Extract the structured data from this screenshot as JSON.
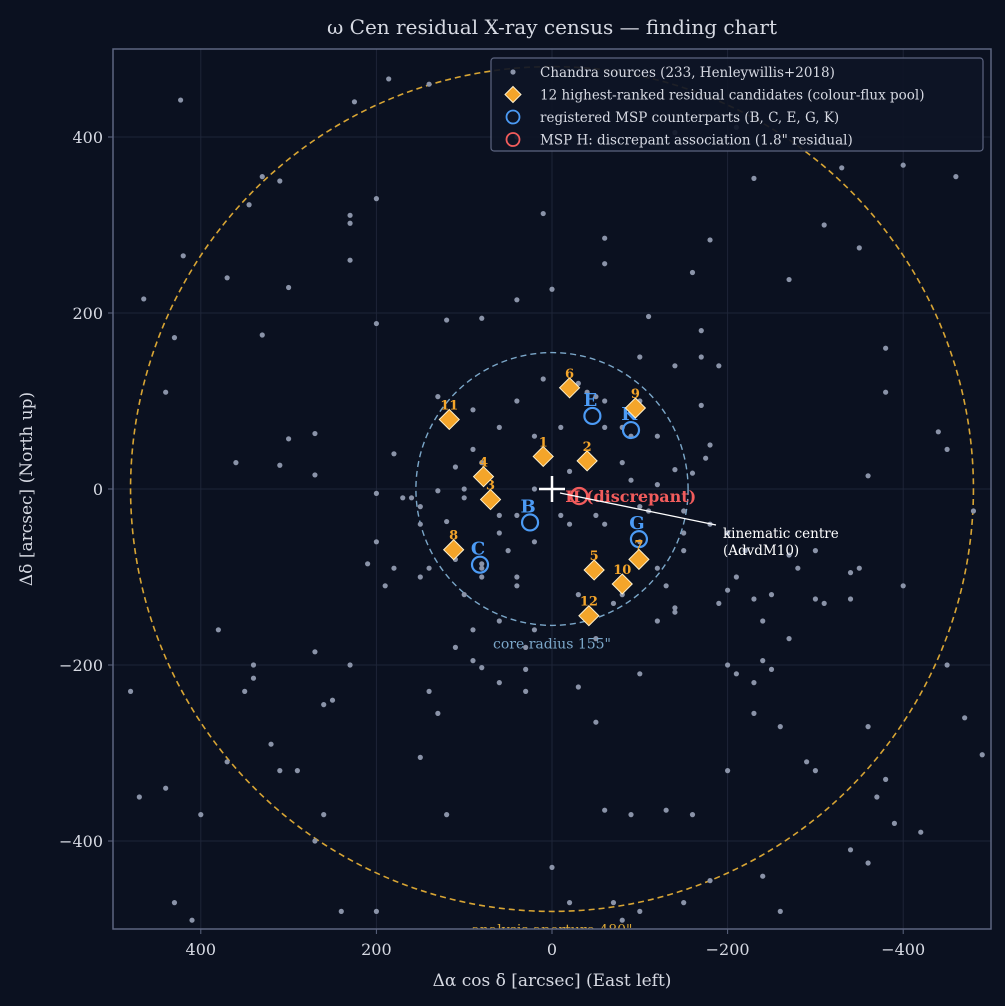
{
  "colors": {
    "background": "#0b1120",
    "axes_frame": "#5d6580",
    "grid": "#1e2538",
    "text": "#d6d9e2",
    "chandra": "#8a93a8",
    "candidate": "#f4a52a",
    "candidate_edge": "#fff1cc",
    "msp": "#4c9bf5",
    "msp_h": "#f25c5c",
    "core": "#7ba7c9",
    "aperture": "#d8a534",
    "centre": "#ffffff"
  },
  "chart_data": {
    "type": "scatter",
    "title": "ω Cen residual X-ray census — finding chart",
    "xlabel": "Δα cos δ [arcsec]  (East left)",
    "ylabel": "Δδ [arcsec]  (North up)",
    "xlim": [
      500,
      -500
    ],
    "ylim": [
      -500,
      500
    ],
    "xticks": [
      400,
      200,
      0,
      -200,
      -400
    ],
    "yticks": [
      400,
      200,
      0,
      -200,
      -400
    ],
    "xtick_labels": [
      "400",
      "200",
      "0",
      "−200",
      "−400"
    ],
    "ytick_labels": [
      "400",
      "200",
      "0",
      "−200",
      "−400"
    ],
    "grid": true,
    "legend_position": "top-right",
    "legend": [
      {
        "label": "Chandra sources (233, Henleywillis+2018)",
        "marker": "dot"
      },
      {
        "label": "12 highest-ranked residual candidates (colour-flux pool)",
        "marker": "diamond"
      },
      {
        "label": "registered MSP counterparts (B, C, E, G, K)",
        "marker": "circle-blue"
      },
      {
        "label": "MSP H: discrepant association (1.8\" residual)",
        "marker": "circle-red"
      }
    ],
    "core_radius": 155,
    "core_label": "core radius 155\"",
    "aperture_radius": 480,
    "aperture_label": "analysis aperture 480\"",
    "centre": {
      "x": 0,
      "y": 0
    },
    "centre_label_line1": "kinematic centre",
    "centre_label_line2": "(AdvdM10)",
    "chandra_points": [
      [
        423,
        442
      ],
      [
        225,
        440
      ],
      [
        186,
        466
      ],
      [
        140,
        460
      ],
      [
        40,
        400
      ],
      [
        -140,
        405
      ],
      [
        -210,
        411
      ],
      [
        -330,
        365
      ],
      [
        -400,
        368
      ],
      [
        -460,
        355
      ],
      [
        -230,
        353
      ],
      [
        -180,
        283
      ],
      [
        -160,
        246
      ],
      [
        -350,
        274
      ],
      [
        -310,
        300
      ],
      [
        -270,
        238
      ],
      [
        -60,
        256
      ],
      [
        -110,
        196
      ],
      [
        10,
        313
      ],
      [
        -60,
        285
      ],
      [
        0,
        227
      ],
      [
        40,
        215
      ],
      [
        80,
        194
      ],
      [
        120,
        192
      ],
      [
        230,
        260
      ],
      [
        300,
        229
      ],
      [
        310,
        350
      ],
      [
        330,
        355
      ],
      [
        345,
        323
      ],
      [
        370,
        240
      ],
      [
        420,
        265
      ],
      [
        430,
        172
      ],
      [
        440,
        110
      ],
      [
        465,
        216
      ],
      [
        330,
        175
      ],
      [
        200,
        188
      ],
      [
        200,
        330
      ],
      [
        230,
        302
      ],
      [
        230,
        311
      ],
      [
        360,
        30
      ],
      [
        310,
        27
      ],
      [
        300,
        57
      ],
      [
        270,
        63
      ],
      [
        270,
        16
      ],
      [
        180,
        40
      ],
      [
        160,
        -10
      ],
      [
        200,
        -5
      ],
      [
        130,
        -2
      ],
      [
        150,
        -40
      ],
      [
        120,
        -37
      ],
      [
        110,
        -70
      ],
      [
        110,
        -80
      ],
      [
        80,
        -85
      ],
      [
        90,
        -160
      ],
      [
        60,
        -150
      ],
      [
        110,
        -180
      ],
      [
        140,
        -230
      ],
      [
        130,
        -255
      ],
      [
        120,
        -370
      ],
      [
        90,
        -195
      ],
      [
        150,
        -305
      ],
      [
        80,
        -203
      ],
      [
        60,
        -220
      ],
      [
        30,
        -180
      ],
      [
        30,
        -205
      ],
      [
        20,
        -160
      ],
      [
        -30,
        -225
      ],
      [
        -50,
        -265
      ],
      [
        -60,
        -365
      ],
      [
        -90,
        -370
      ],
      [
        -130,
        -365
      ],
      [
        -160,
        -370
      ],
      [
        -200,
        -320
      ],
      [
        -210,
        -210
      ],
      [
        -230,
        -220
      ],
      [
        -240,
        -195
      ],
      [
        -250,
        -205
      ],
      [
        -260,
        -270
      ],
      [
        -230,
        -255
      ],
      [
        -240,
        -440
      ],
      [
        -290,
        -310
      ],
      [
        -300,
        -320
      ],
      [
        -340,
        -410
      ],
      [
        -360,
        -425
      ],
      [
        -380,
        -330
      ],
      [
        -390,
        -380
      ],
      [
        -370,
        -350
      ],
      [
        -400,
        -110
      ],
      [
        -420,
        -390
      ],
      [
        -470,
        -260
      ],
      [
        -490,
        -302
      ],
      [
        -550,
        -330
      ],
      [
        -480,
        -25
      ],
      [
        -450,
        -200
      ],
      [
        -440,
        65
      ],
      [
        -450,
        45
      ],
      [
        -380,
        160
      ],
      [
        -380,
        110
      ],
      [
        -360,
        15
      ],
      [
        -350,
        -90
      ],
      [
        -340,
        -95
      ],
      [
        -300,
        -125
      ],
      [
        -310,
        -130
      ],
      [
        -300,
        -70
      ],
      [
        -280,
        -90
      ],
      [
        -270,
        -75
      ],
      [
        -250,
        -120
      ],
      [
        -240,
        -150
      ],
      [
        -230,
        -125
      ],
      [
        -220,
        -70
      ],
      [
        -210,
        -100
      ],
      [
        -180,
        50
      ],
      [
        -175,
        35
      ],
      [
        -160,
        18
      ],
      [
        -150,
        -70
      ],
      [
        -140,
        -135
      ],
      [
        -140,
        -140
      ],
      [
        -130,
        -110
      ],
      [
        -150,
        -25
      ],
      [
        -140,
        22
      ],
      [
        -120,
        5
      ],
      [
        -110,
        -25
      ],
      [
        -100,
        -60
      ],
      [
        -90,
        60
      ],
      [
        -80,
        70
      ],
      [
        -60,
        100
      ],
      [
        -60,
        70
      ],
      [
        -50,
        105
      ],
      [
        -40,
        110
      ],
      [
        -30,
        120
      ],
      [
        -10,
        -30
      ],
      [
        -20,
        -40
      ],
      [
        -10,
        70
      ],
      [
        10,
        30
      ],
      [
        10,
        125
      ],
      [
        20,
        60
      ],
      [
        20,
        -60
      ],
      [
        40,
        -100
      ],
      [
        50,
        -70
      ],
      [
        60,
        -30
      ],
      [
        70,
        -15
      ],
      [
        80,
        -100
      ],
      [
        80,
        -90
      ],
      [
        100,
        -10
      ],
      [
        110,
        25
      ],
      [
        90,
        45
      ],
      [
        80,
        30
      ],
      [
        60,
        70
      ],
      [
        -100,
        100
      ],
      [
        -140,
        140
      ],
      [
        -170,
        150
      ],
      [
        -170,
        180
      ],
      [
        -190,
        140
      ],
      [
        -170,
        95
      ],
      [
        -200,
        -115
      ],
      [
        -190,
        -130
      ],
      [
        -200,
        -200
      ],
      [
        -270,
        -170
      ],
      [
        -340,
        -125
      ],
      [
        -360,
        -270
      ],
      [
        130,
        105
      ],
      [
        150,
        -20
      ],
      [
        170,
        -10
      ],
      [
        180,
        -90
      ],
      [
        190,
        -110
      ],
      [
        210,
        -85
      ],
      [
        200,
        -60
      ],
      [
        230,
        -200
      ],
      [
        250,
        -240
      ],
      [
        260,
        -245
      ],
      [
        270,
        -185
      ],
      [
        290,
        -320
      ],
      [
        310,
        -320
      ],
      [
        320,
        -290
      ],
      [
        340,
        -215
      ],
      [
        340,
        -200
      ],
      [
        350,
        -230
      ],
      [
        370,
        -310
      ],
      [
        400,
        -370
      ],
      [
        410,
        -490
      ],
      [
        430,
        -470
      ],
      [
        470,
        -350
      ],
      [
        480,
        -230
      ],
      [
        440,
        -340
      ],
      [
        380,
        -160
      ],
      [
        200,
        -480
      ],
      [
        260,
        -370
      ],
      [
        270,
        -400
      ],
      [
        240,
        -480
      ],
      [
        0,
        -430
      ],
      [
        -20,
        -470
      ],
      [
        -70,
        -470
      ],
      [
        -80,
        -490
      ],
      [
        -100,
        -480
      ],
      [
        -150,
        -470
      ],
      [
        -180,
        -445
      ],
      [
        -260,
        -480
      ],
      [
        150,
        -100
      ],
      [
        100,
        0
      ],
      [
        90,
        90
      ],
      [
        40,
        100
      ],
      [
        40,
        -30
      ],
      [
        60,
        -50
      ],
      [
        20,
        0
      ],
      [
        -20,
        20
      ],
      [
        -40,
        40
      ],
      [
        -50,
        -30
      ],
      [
        -60,
        -40
      ],
      [
        -90,
        10
      ],
      [
        -100,
        -20
      ],
      [
        -80,
        -120
      ],
      [
        -120,
        -90
      ],
      [
        -70,
        -130
      ],
      [
        -30,
        -120
      ],
      [
        -50,
        -170
      ],
      [
        30,
        -230
      ],
      [
        -100,
        -210
      ],
      [
        -120,
        -150
      ],
      [
        -80,
        30
      ],
      [
        -120,
        60
      ],
      [
        -100,
        150
      ],
      [
        -150,
        -50
      ],
      [
        -180,
        -40
      ],
      [
        -200,
        -50
      ],
      [
        40,
        -110
      ],
      [
        100,
        -120
      ],
      [
        140,
        -90
      ]
    ],
    "candidates": [
      {
        "label": "1",
        "x": 10,
        "y": 37
      },
      {
        "label": "2",
        "x": -40,
        "y": 32
      },
      {
        "label": "3",
        "x": 70,
        "y": -12
      },
      {
        "label": "4",
        "x": 78,
        "y": 14
      },
      {
        "label": "5",
        "x": -48,
        "y": -92
      },
      {
        "label": "6",
        "x": -20,
        "y": 115
      },
      {
        "label": "7",
        "x": -99,
        "y": -80
      },
      {
        "label": "8",
        "x": 112,
        "y": -69
      },
      {
        "label": "9",
        "x": -95,
        "y": 92
      },
      {
        "label": "10",
        "x": -80,
        "y": -108
      },
      {
        "label": "11",
        "x": 117,
        "y": 79
      },
      {
        "label": "12",
        "x": -42,
        "y": -144
      }
    ],
    "msps": [
      {
        "label": "B",
        "x": 25,
        "y": -38
      },
      {
        "label": "C",
        "x": 82,
        "y": -86
      },
      {
        "label": "E",
        "x": -46,
        "y": 83
      },
      {
        "label": "G",
        "x": -99,
        "y": -57
      },
      {
        "label": "K",
        "x": -90,
        "y": 67
      }
    ],
    "msp_h": {
      "label": "H (discrepant)",
      "x": -31,
      "y": -8
    }
  }
}
